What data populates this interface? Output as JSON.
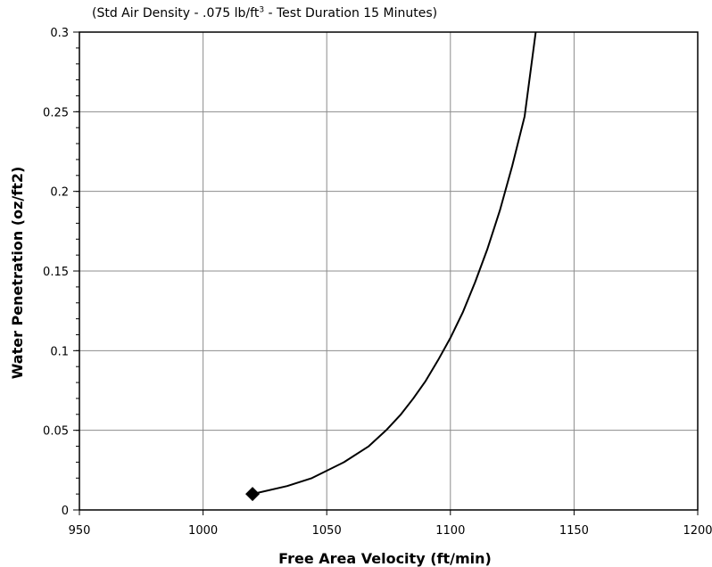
{
  "subtitle": {
    "pre": "(Std Air Density - .075 lb/ft",
    "sup": "3",
    "post": " -  Test Duration 15 Minutes)"
  },
  "chart_data": {
    "type": "line",
    "subtitle": "(Std Air Density - .075 lb/ft3 -  Test Duration 15 Minutes)",
    "xlabel": "Free Area Velocity (ft/min)",
    "ylabel": "Water Penetration (oz/ft2)",
    "xlim": [
      950,
      1200
    ],
    "ylim": [
      0,
      0.3
    ],
    "x_ticks": [
      950,
      1000,
      1050,
      1100,
      1150,
      1200
    ],
    "y_ticks": [
      0,
      0.05,
      0.1,
      0.15,
      0.2,
      0.25,
      0.3
    ],
    "x_tick_labels": [
      "950",
      "1000",
      "1050",
      "1100",
      "1150",
      "1200"
    ],
    "y_tick_labels": [
      "0",
      "0.05",
      "0.1",
      "0.15",
      "0.2",
      "0.25",
      "0.3"
    ],
    "grid": true,
    "series": [
      {
        "color": "#000000",
        "x": [
          1020,
          1034,
          1044,
          1057,
          1067,
          1074,
          1080,
          1085,
          1090,
          1095,
          1100,
          1105,
          1110,
          1115,
          1120,
          1125,
          1130,
          1134.5
        ],
        "y": [
          0.01,
          0.015,
          0.02,
          0.03,
          0.04,
          0.05,
          0.06,
          0.07,
          0.081,
          0.094,
          0.108,
          0.124,
          0.143,
          0.164,
          0.188,
          0.216,
          0.247,
          0.3
        ]
      }
    ],
    "markers": [
      {
        "x": 1020,
        "y": 0.01,
        "shape": "diamond"
      }
    ]
  }
}
